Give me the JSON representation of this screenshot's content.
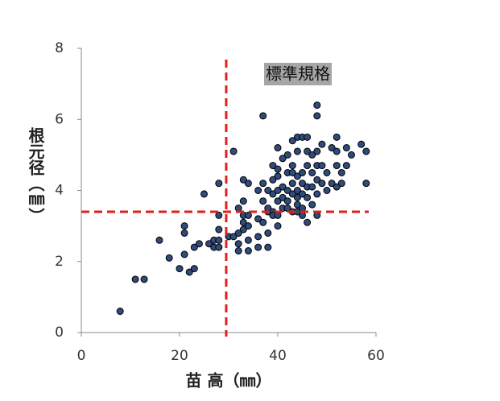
{
  "chart_data": {
    "type": "scatter",
    "xlabel": "苗 高（㎜）",
    "ylabel": "根元径（㎜）",
    "annotation": "標準規格",
    "xlim": [
      0,
      60
    ],
    "ylim": [
      0,
      8
    ],
    "xticks": [
      0,
      20,
      40,
      60
    ],
    "yticks": [
      0,
      2,
      4,
      6,
      8
    ],
    "color": "#2f4b7c",
    "ref_color": "#e0201c",
    "vline": 29.5,
    "hline": 3.4,
    "x": [
      7.9,
      11,
      12.8,
      15.9,
      17.9,
      20,
      21,
      21,
      21,
      22,
      23,
      23,
      24,
      25,
      26,
      27,
      27,
      28,
      28,
      28,
      28,
      28,
      30,
      31,
      31,
      32,
      32,
      32,
      32,
      33,
      33,
      33,
      33,
      33,
      34,
      34,
      34,
      34,
      34,
      36,
      36,
      36,
      36,
      37,
      37,
      37,
      37,
      38,
      38,
      38,
      38,
      38,
      39,
      39,
      39,
      39,
      39,
      40,
      40,
      40,
      40,
      40,
      40,
      40,
      41,
      41,
      41,
      41,
      42,
      42,
      42,
      42,
      42,
      43,
      43,
      43,
      43,
      43,
      43,
      44,
      44,
      44,
      44,
      44,
      44,
      44,
      45,
      45,
      45,
      45,
      45,
      45,
      46,
      46,
      46,
      46,
      46,
      46,
      47,
      47,
      47,
      47,
      48,
      48,
      48,
      48,
      48,
      48,
      48,
      49,
      49,
      49,
      50,
      50,
      51,
      51,
      52,
      52,
      52,
      52,
      53,
      53,
      54,
      55,
      54,
      57,
      58,
      58
    ],
    "values": [
      0.6,
      1.5,
      1.5,
      2.6,
      2.1,
      1.8,
      3.0,
      2.8,
      2.2,
      1.7,
      1.8,
      2.4,
      2.5,
      3.9,
      2.5,
      2.6,
      2.4,
      2.6,
      2.4,
      3.3,
      2.9,
      4.2,
      2.7,
      5.1,
      2.7,
      2.8,
      2.5,
      2.3,
      3.5,
      4.3,
      3.7,
      3.3,
      3.1,
      2.9,
      4.2,
      3.3,
      3.0,
      2.6,
      2.3,
      3.2,
      4.0,
      2.7,
      2.4,
      6.1,
      4.2,
      3.7,
      3.1,
      3.4,
      2.8,
      2.4,
      3.5,
      4.0,
      4.7,
      4.3,
      3.9,
      3.4,
      3.3,
      5.2,
      4.6,
      4.0,
      3.7,
      3.3,
      3.0,
      4.4,
      4.9,
      4.1,
      3.8,
      3.5,
      4.5,
      4.0,
      3.5,
      3.7,
      5.0,
      5.4,
      4.7,
      4.2,
      3.9,
      3.4,
      4.5,
      5.5,
      5.1,
      4.4,
      4.0,
      3.6,
      3.4,
      3.8,
      5.5,
      4.5,
      4.2,
      3.9,
      3.5,
      3.3,
      5.5,
      5.1,
      4.7,
      4.1,
      3.1,
      3.8,
      5.0,
      4.5,
      4.1,
      3.6,
      6.4,
      6.1,
      5.1,
      4.7,
      4.3,
      3.9,
      3.3,
      5.3,
      4.7,
      4.2,
      4.5,
      4.0,
      5.2,
      4.2,
      5.5,
      4.7,
      4.1,
      5.1,
      4.5,
      4.2,
      4.7,
      5.0,
      5.2,
      5.3,
      5.1,
      4.2
    ]
  }
}
